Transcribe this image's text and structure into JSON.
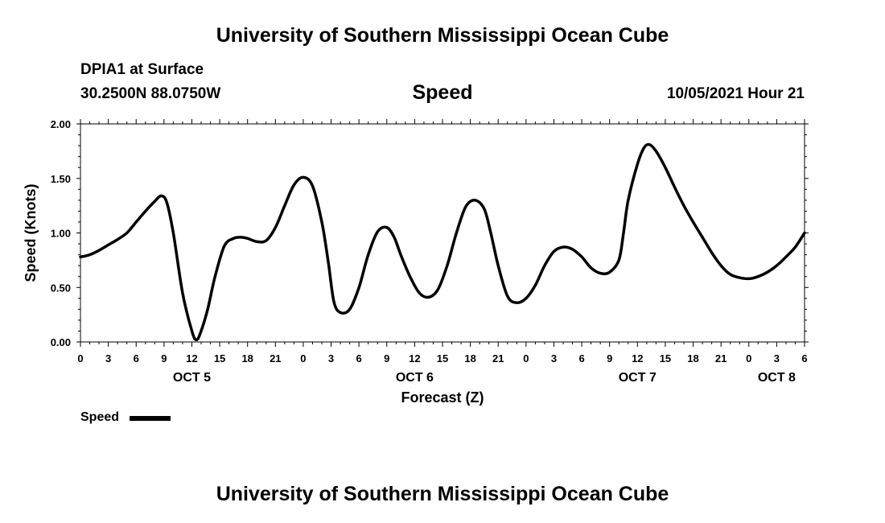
{
  "header": {
    "title": "University of Southern Mississippi Ocean Cube",
    "station": "DPIA1 at Surface",
    "coords": "30.2500N  88.0750W",
    "variable": "Speed",
    "datetime": "10/05/2021 Hour 21"
  },
  "footer": {
    "title": "University of Southern Mississippi Ocean Cube"
  },
  "chart_data": {
    "type": "line",
    "xlabel": "Forecast (Z)",
    "ylabel": "Speed (Knots)",
    "ylim": [
      0,
      2
    ],
    "xlim": [
      0,
      78
    ],
    "y_ticks": [
      "0.00",
      "0.50",
      "1.00",
      "1.50",
      "2.00"
    ],
    "x_tick_labels": [
      "0",
      "3",
      "6",
      "9",
      "12",
      "15",
      "18",
      "21",
      "0",
      "3",
      "6",
      "9",
      "12",
      "15",
      "18",
      "21",
      "0",
      "3",
      "6",
      "9",
      "12",
      "15",
      "18",
      "21",
      "0",
      "3",
      "6"
    ],
    "day_labels": [
      {
        "label": "OCT 5",
        "hour": 12
      },
      {
        "label": "OCT 6",
        "hour": 36
      },
      {
        "label": "OCT 7",
        "hour": 60
      },
      {
        "label": "OCT 8",
        "hour": 75
      }
    ],
    "grid": false,
    "legend_position": "bottom-left",
    "series": [
      {
        "name": "Speed",
        "color": "#000000",
        "x": [
          0,
          1,
          2,
          3,
          4,
          5,
          6,
          7,
          8,
          8.7,
          9.3,
          10,
          11,
          12,
          12.5,
          13,
          13.7,
          14.5,
          15.5,
          16.5,
          17.3,
          18,
          19,
          20,
          21,
          22,
          23,
          24,
          25,
          26,
          26.7,
          27.3,
          28,
          29,
          30,
          31,
          32,
          33,
          33.8,
          34.5,
          35.5,
          36.5,
          37.5,
          38.5,
          39.5,
          40.5,
          41.5,
          42.5,
          43.5,
          44.2,
          45,
          46,
          47,
          48,
          49,
          50,
          51,
          52,
          53,
          54,
          55,
          56,
          57,
          58,
          58.5,
          59,
          60,
          60.7,
          61.3,
          62,
          63,
          64,
          65,
          66,
          67,
          68,
          69,
          70,
          71,
          72,
          73,
          74,
          75,
          76,
          77,
          78
        ],
        "y": [
          0.78,
          0.8,
          0.84,
          0.89,
          0.94,
          1.0,
          1.1,
          1.2,
          1.29,
          1.34,
          1.28,
          1.0,
          0.45,
          0.1,
          0.02,
          0.1,
          0.3,
          0.6,
          0.88,
          0.95,
          0.96,
          0.95,
          0.92,
          0.93,
          1.05,
          1.25,
          1.44,
          1.51,
          1.43,
          1.1,
          0.73,
          0.37,
          0.27,
          0.3,
          0.5,
          0.8,
          1.01,
          1.05,
          0.96,
          0.8,
          0.6,
          0.45,
          0.41,
          0.48,
          0.7,
          1.0,
          1.24,
          1.3,
          1.22,
          1.0,
          0.7,
          0.42,
          0.36,
          0.4,
          0.52,
          0.7,
          0.83,
          0.87,
          0.85,
          0.78,
          0.68,
          0.63,
          0.64,
          0.75,
          1.0,
          1.3,
          1.63,
          1.78,
          1.81,
          1.75,
          1.6,
          1.42,
          1.25,
          1.1,
          0.96,
          0.82,
          0.7,
          0.62,
          0.59,
          0.58,
          0.6,
          0.64,
          0.7,
          0.78,
          0.87,
          1.0
        ]
      }
    ]
  }
}
